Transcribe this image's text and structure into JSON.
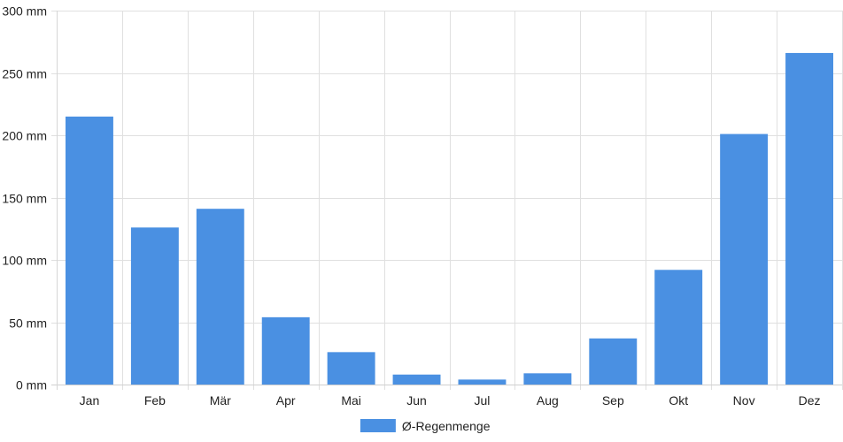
{
  "chart_data": {
    "type": "bar",
    "title": "",
    "xlabel": "",
    "ylabel": "",
    "categories": [
      "Jan",
      "Feb",
      "Mär",
      "Apr",
      "Mai",
      "Jun",
      "Jul",
      "Aug",
      "Sep",
      "Okt",
      "Nov",
      "Dez"
    ],
    "series": [
      {
        "name": "Ø-Regenmenge",
        "color": "#4a90e2",
        "values": [
          215,
          126,
          141,
          54,
          26,
          8,
          4,
          9,
          37,
          92,
          201,
          266
        ]
      }
    ],
    "ylim": [
      0,
      300
    ],
    "y_ticks": [
      {
        "value": 0,
        "label": "0 mm"
      },
      {
        "value": 50,
        "label": "50 mm"
      },
      {
        "value": 100,
        "label": "100 mm"
      },
      {
        "value": 150,
        "label": "150 mm"
      },
      {
        "value": 200,
        "label": "200 mm"
      },
      {
        "value": 250,
        "label": "250 mm"
      },
      {
        "value": 300,
        "label": "300 mm"
      }
    ],
    "grid": true,
    "legend": "bottom"
  }
}
